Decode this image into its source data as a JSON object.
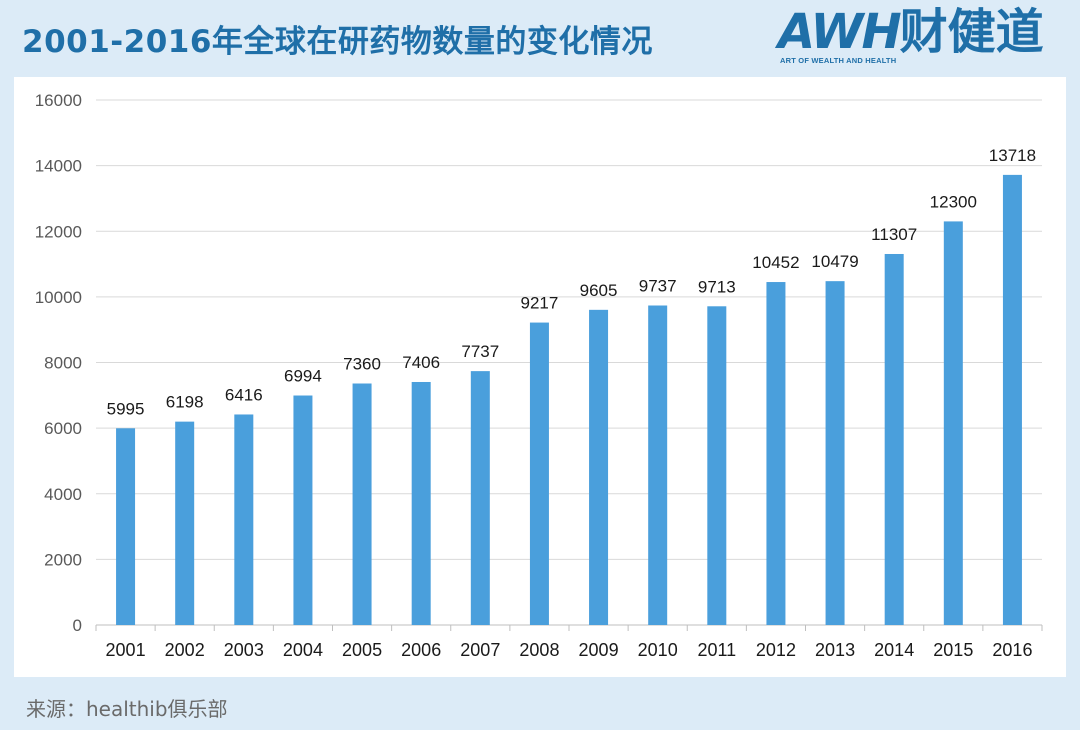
{
  "header": {
    "title": "2001-2016年全球在研药物数量的变化情况"
  },
  "logo": {
    "main": "AWH",
    "cn": "财健道",
    "sub": "ART OF WEALTH AND HEALTH",
    "color": "#1f6fa8"
  },
  "footer": {
    "source": "来源：healthib俱乐部"
  },
  "chart_data": {
    "type": "bar",
    "title": "2001-2016年全球在研药物数量的变化情况",
    "xlabel": "",
    "ylabel": "",
    "categories": [
      "2001",
      "2002",
      "2003",
      "2004",
      "2005",
      "2006",
      "2007",
      "2008",
      "2009",
      "2010",
      "2011",
      "2012",
      "2013",
      "2014",
      "2015",
      "2016"
    ],
    "values": [
      5995,
      6198,
      6416,
      6994,
      7360,
      7406,
      7737,
      9217,
      9605,
      9737,
      9713,
      10452,
      10479,
      11307,
      12300,
      13718
    ],
    "ylim": [
      0,
      16000
    ],
    "yticks": [
      0,
      2000,
      4000,
      6000,
      8000,
      10000,
      12000,
      14000,
      16000
    ],
    "grid": true,
    "legend": "none",
    "bar_color": "#4a9fdc",
    "grid_color": "#d9d9d9"
  }
}
